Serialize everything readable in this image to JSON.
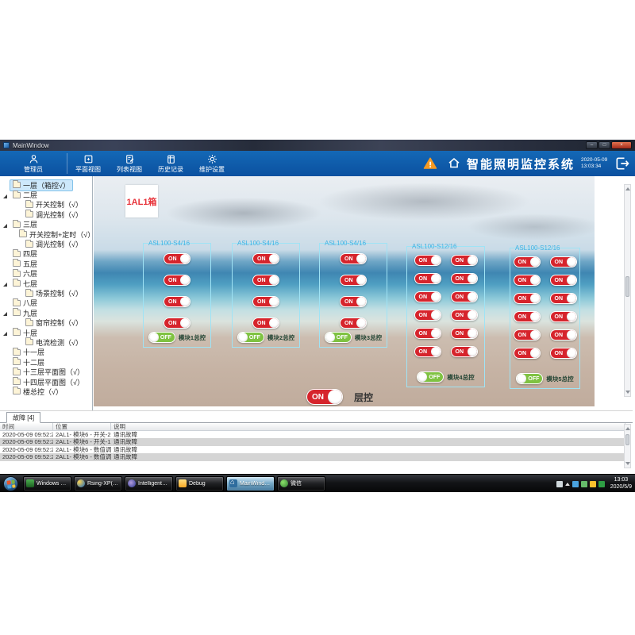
{
  "window": {
    "title": "MainWindow"
  },
  "toolbar": {
    "user_label": "管理员",
    "buttons": [
      {
        "label": "平面视图"
      },
      {
        "label": "列表视图"
      },
      {
        "label": "历史记录"
      },
      {
        "label": "维护设置"
      }
    ],
    "app_title": "智能照明监控系统",
    "date": "2020-05-09",
    "time": "13:03:34"
  },
  "sidebar": {
    "items": [
      {
        "label": "一层（箱控√）",
        "level": 0,
        "arrow": false,
        "selected": true
      },
      {
        "label": "二层",
        "level": 0,
        "arrow": true,
        "selected": false
      },
      {
        "label": "开关控制（√）",
        "level": 1,
        "arrow": false,
        "selected": false
      },
      {
        "label": "调光控制（√）",
        "level": 1,
        "arrow": false,
        "selected": false
      },
      {
        "label": "三层",
        "level": 0,
        "arrow": true,
        "selected": false
      },
      {
        "label": "开关控制+定时（√）",
        "level": 1,
        "arrow": false,
        "selected": false
      },
      {
        "label": "调光控制（√）",
        "level": 1,
        "arrow": false,
        "selected": false
      },
      {
        "label": "四层",
        "level": 0,
        "arrow": false,
        "selected": false
      },
      {
        "label": "五层",
        "level": 0,
        "arrow": false,
        "selected": false
      },
      {
        "label": "六层",
        "level": 0,
        "arrow": false,
        "selected": false
      },
      {
        "label": "七层",
        "level": 0,
        "arrow": true,
        "selected": false
      },
      {
        "label": "场景控制（√）",
        "level": 1,
        "arrow": false,
        "selected": false
      },
      {
        "label": "八层",
        "level": 0,
        "arrow": false,
        "selected": false
      },
      {
        "label": "九层",
        "level": 0,
        "arrow": true,
        "selected": false
      },
      {
        "label": "窗帘控制（√）",
        "level": 1,
        "arrow": false,
        "selected": false
      },
      {
        "label": "十层",
        "level": 0,
        "arrow": true,
        "selected": false
      },
      {
        "label": "电流检测（√）",
        "level": 1,
        "arrow": false,
        "selected": false
      },
      {
        "label": "十一层",
        "level": 0,
        "arrow": false,
        "selected": false
      },
      {
        "label": "十二层",
        "level": 0,
        "arrow": false,
        "selected": false
      },
      {
        "label": "十三层平面图（√）",
        "level": 0,
        "arrow": false,
        "selected": false
      },
      {
        "label": "十四层平面图（√）",
        "level": 0,
        "arrow": false,
        "selected": false
      },
      {
        "label": "楼总控（√）",
        "level": 0,
        "arrow": false,
        "selected": false
      }
    ]
  },
  "main": {
    "box_label": "1AL1箱",
    "panels": [
      {
        "model": "ASL100-S4/16",
        "columns": 1,
        "switches": [
          "ON",
          "ON",
          "ON",
          "ON"
        ],
        "master_state": "OFF",
        "master_label": "模块1总控"
      },
      {
        "model": "ASL100-S4/16",
        "columns": 1,
        "switches": [
          "ON",
          "ON",
          "ON",
          "ON"
        ],
        "master_state": "OFF",
        "master_label": "模块2总控"
      },
      {
        "model": "ASL100-S4/16",
        "columns": 1,
        "switches": [
          "ON",
          "ON",
          "ON",
          "ON"
        ],
        "master_state": "OFF",
        "master_label": "模块3总控"
      },
      {
        "model": "ASL100-S12/16",
        "columns": 2,
        "switches": [
          "ON",
          "ON",
          "ON",
          "ON",
          "ON",
          "ON",
          "ON",
          "ON",
          "ON",
          "ON",
          "ON",
          "ON"
        ],
        "master_state": "OFF",
        "master_label": "模块4总控"
      },
      {
        "model": "ASL100-S12/16",
        "columns": 2,
        "switches": [
          "ON",
          "ON",
          "ON",
          "ON",
          "ON",
          "ON",
          "ON",
          "ON",
          "ON",
          "ON",
          "ON",
          "ON"
        ],
        "master_state": "OFF",
        "master_label": "模块5总控"
      }
    ],
    "floor_control": {
      "state": "ON",
      "label": "层控"
    }
  },
  "faults": {
    "tab_label": "故障 [4]",
    "columns": [
      "时间",
      "位置",
      "说明"
    ],
    "rows": [
      [
        "2020-05-09 09:52:27",
        "2AL1- 模块6 - 开关-2",
        "通讯故障"
      ],
      [
        "2020-05-09 09:52:27",
        "2AL1- 模块6 - 开关-1",
        "通讯故障"
      ],
      [
        "2020-05-09 09:52:27",
        "2AL1- 模块6 - 数值调光1",
        "通讯故障"
      ],
      [
        "2020-05-09 09:52:27",
        "2AL1- 模块6 - 数值调光2",
        "通讯故障"
      ]
    ]
  },
  "taskbar": {
    "buttons": [
      {
        "label": "Windows 任务管...",
        "icon": "task-manager-icon",
        "active": false
      },
      {
        "label": "Rsing-XP(PC211...",
        "icon": "computer-icon",
        "active": false
      },
      {
        "label": "IntelligentLightin...",
        "icon": "lighting-app-icon",
        "active": false
      },
      {
        "label": "Debug",
        "icon": "folder-icon",
        "active": false
      },
      {
        "label": "MainWindow",
        "icon": "house-icon",
        "active": true
      },
      {
        "label": "微信",
        "icon": "wechat-icon",
        "active": false
      }
    ],
    "tray_time": "13:03",
    "tray_date": "2020/5/9"
  },
  "colors": {
    "toolbar_blue": "#0f5caf",
    "switch_on_red": "#d6242c",
    "switch_off_green": "#7fc242",
    "panel_border_cyan": "#9fe3f5",
    "alarm_orange": "#f59a23",
    "box_label_red": "#e8353c"
  }
}
